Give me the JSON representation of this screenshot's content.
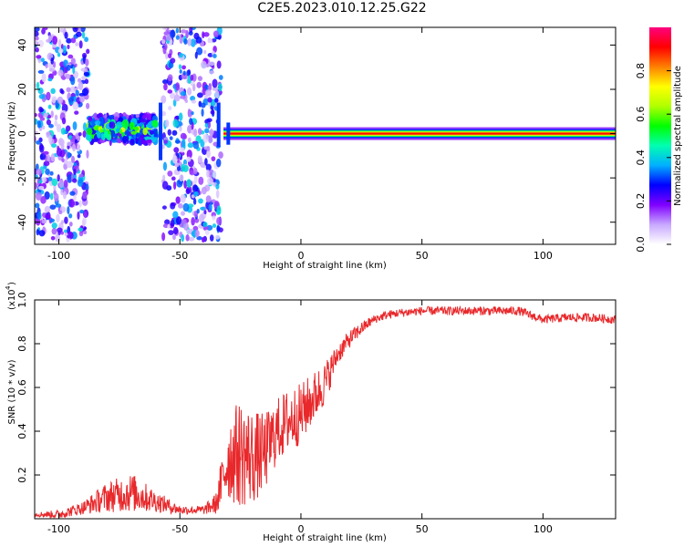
{
  "title": "C2E5.2023.010.12.25.G22",
  "chart_data": [
    {
      "type": "heatmap",
      "xlabel": "Height of straight line (km)",
      "ylabel": "Frequency (Hz)",
      "xlim": [
        -110,
        130
      ],
      "ylim": [
        -50,
        48
      ],
      "x_ticks": [
        -100,
        -50,
        0,
        50,
        100
      ],
      "y_ticks": [
        -40,
        -20,
        0,
        20,
        40
      ],
      "colorbar": {
        "label": "Normalized spectral amplitude",
        "range": [
          0.0,
          1.0
        ],
        "ticks": [
          "0.0",
          "0.2",
          "0.4",
          "0.6",
          "0.8"
        ],
        "colors": [
          "#ffffff",
          "#c8a8ff",
          "#8000ff",
          "#0000ff",
          "#00b0ff",
          "#00ffb0",
          "#00ff00",
          "#b0ff00",
          "#ffff00",
          "#ff8000",
          "#ff0000",
          "#ff0080"
        ]
      },
      "features": [
        {
          "x_range": [
            -110,
            -88
          ],
          "freq_center": 0,
          "freq_spread": 48,
          "amplitude": 0.3
        },
        {
          "x_range": [
            -88,
            -60
          ],
          "freq_center": 2,
          "freq_spread": 6,
          "amplitude": 0.45
        },
        {
          "x_range": [
            -57,
            -33
          ],
          "freq_center": 0,
          "freq_spread": 48,
          "amplitude": 0.3
        },
        {
          "x_range": [
            -32,
            130
          ],
          "freq_center": 0,
          "freq_spread": 2,
          "amplitude": 0.85
        }
      ]
    },
    {
      "type": "line",
      "xlabel": "Height of straight line (km)",
      "ylabel": "SNR (10 * v/v)",
      "y_multiplier": "(x10",
      "y_multiplier_exp": "4",
      "xlim": [
        -110,
        130
      ],
      "ylim": [
        0,
        1.0
      ],
      "x_ticks": [
        -100,
        -50,
        0,
        50,
        100
      ],
      "y_ticks": [
        0.2,
        0.4,
        0.6,
        0.8,
        1.0
      ],
      "y_tick_labels": [
        "0.2",
        "0.4",
        "0.6",
        "0.8",
        "1.0"
      ],
      "line_color": "#e8282b",
      "trend": {
        "x": [
          -110,
          -100,
          -90,
          -80,
          -70,
          -60,
          -50,
          -40,
          -35,
          -30,
          -25,
          -20,
          -15,
          -10,
          -5,
          0,
          5,
          10,
          15,
          20,
          25,
          30,
          35,
          40,
          50,
          60,
          70,
          80,
          90,
          95,
          100,
          110,
          120,
          130
        ],
        "mean": [
          0.02,
          0.02,
          0.05,
          0.1,
          0.12,
          0.08,
          0.04,
          0.04,
          0.07,
          0.28,
          0.3,
          0.28,
          0.3,
          0.4,
          0.45,
          0.48,
          0.55,
          0.62,
          0.75,
          0.82,
          0.87,
          0.91,
          0.93,
          0.94,
          0.95,
          0.95,
          0.95,
          0.95,
          0.95,
          0.93,
          0.91,
          0.92,
          0.92,
          0.91
        ],
        "noise": [
          0.01,
          0.02,
          0.03,
          0.07,
          0.09,
          0.05,
          0.02,
          0.02,
          0.05,
          0.2,
          0.25,
          0.22,
          0.18,
          0.15,
          0.15,
          0.14,
          0.12,
          0.1,
          0.05,
          0.04,
          0.03,
          0.02,
          0.02,
          0.02,
          0.02,
          0.02,
          0.02,
          0.02,
          0.02,
          0.02,
          0.02,
          0.02,
          0.02,
          0.02
        ]
      }
    }
  ]
}
